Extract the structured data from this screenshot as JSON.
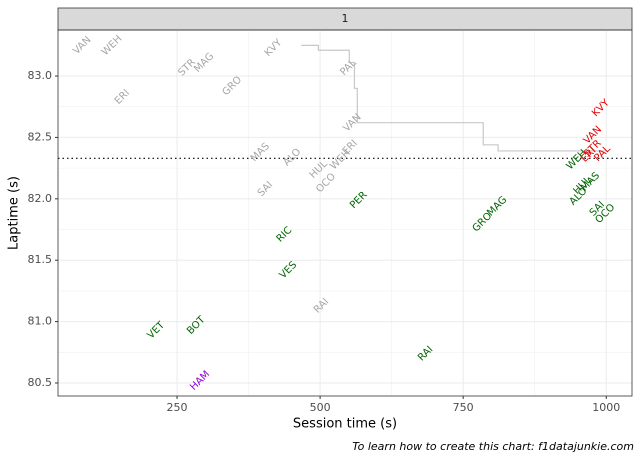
{
  "chart_data": {
    "type": "text-scatter",
    "strip": "1",
    "x_label": "Session time (s)",
    "y_label": "Laptime (s)",
    "caption": "To learn how to create this chart: f1datajunkie.com",
    "xlim": [
      42,
      1045
    ],
    "ylim": [
      80.394,
      83.375
    ],
    "xticks": [
      250,
      500,
      750,
      1000
    ],
    "yticks": [
      {
        "value": 80.5,
        "label": "80.5"
      },
      {
        "value": 81,
        "label": "81.0"
      },
      {
        "value": 81.5,
        "label": "81.5"
      },
      {
        "value": 82,
        "label": "82.0"
      },
      {
        "value": 82.5,
        "label": "82.5"
      },
      {
        "value": 83,
        "label": "83.0"
      }
    ],
    "grid": true,
    "hline": 82.33,
    "step_line": {
      "color": "#c8c8c8",
      "x": [
        467,
        497,
        551,
        560,
        565,
        785,
        811,
        1000
      ],
      "y": [
        83.25,
        83.21,
        83.11,
        82.9,
        82.62,
        82.44,
        82.39,
        82.39
      ]
    },
    "points": [
      {
        "text": "VAN",
        "x": 84,
        "y": 83.25,
        "color": "#a6a6a6"
      },
      {
        "text": "WEH",
        "x": 136,
        "y": 83.25,
        "color": "#a6a6a6"
      },
      {
        "text": "ERI",
        "x": 154,
        "y": 82.83,
        "color": "#a6a6a6"
      },
      {
        "text": "STR",
        "x": 267,
        "y": 83.07,
        "color": "#a6a6a6"
      },
      {
        "text": "MAG",
        "x": 297,
        "y": 83.11,
        "color": "#a6a6a6"
      },
      {
        "text": "GRO",
        "x": 346,
        "y": 82.92,
        "color": "#a6a6a6"
      },
      {
        "text": "KVY",
        "x": 418,
        "y": 83.23,
        "color": "#a6a6a6"
      },
      {
        "text": "MAS",
        "x": 395,
        "y": 82.38,
        "color": "#a6a6a6"
      },
      {
        "text": "ALO",
        "x": 451,
        "y": 82.34,
        "color": "#a6a6a6"
      },
      {
        "text": "SAI",
        "x": 404,
        "y": 82.08,
        "color": "#a6a6a6"
      },
      {
        "text": "HUL",
        "x": 497,
        "y": 82.24,
        "color": "#a6a6a6"
      },
      {
        "text": "OCO",
        "x": 510,
        "y": 82.13,
        "color": "#a6a6a6"
      },
      {
        "text": "WEH",
        "x": 535,
        "y": 82.32,
        "color": "#a6a6a6"
      },
      {
        "text": "ERI",
        "x": 552,
        "y": 82.42,
        "color": "#a6a6a6"
      },
      {
        "text": "VAN",
        "x": 556,
        "y": 82.62,
        "color": "#a6a6a6"
      },
      {
        "text": "PAL",
        "x": 549,
        "y": 83.07,
        "color": "#a6a6a6"
      },
      {
        "text": "RAI",
        "x": 502,
        "y": 81.13,
        "color": "#a6a6a6"
      },
      {
        "text": "PER",
        "x": 567,
        "y": 81.99,
        "color": "#006400"
      },
      {
        "text": "RIC",
        "x": 437,
        "y": 81.71,
        "color": "#006400"
      },
      {
        "text": "VES",
        "x": 444,
        "y": 81.42,
        "color": "#006400"
      },
      {
        "text": "VET",
        "x": 213,
        "y": 80.93,
        "color": "#006400"
      },
      {
        "text": "BOT",
        "x": 283,
        "y": 80.97,
        "color": "#006400"
      },
      {
        "text": "RAI",
        "x": 684,
        "y": 80.74,
        "color": "#006400"
      },
      {
        "text": "GRO",
        "x": 783,
        "y": 81.81,
        "color": "#006400"
      },
      {
        "text": "MAG",
        "x": 809,
        "y": 81.94,
        "color": "#006400"
      },
      {
        "text": "WEH",
        "x": 948,
        "y": 82.32,
        "color": "#006400"
      },
      {
        "text": "HUL",
        "x": 958,
        "y": 82.11,
        "color": "#006400"
      },
      {
        "text": "MAS",
        "x": 972,
        "y": 82.14,
        "color": "#006400"
      },
      {
        "text": "ALO",
        "x": 951,
        "y": 82.02,
        "color": "#006400"
      },
      {
        "text": "SAI",
        "x": 984,
        "y": 81.92,
        "color": "#006400"
      },
      {
        "text": "OCO",
        "x": 998,
        "y": 81.88,
        "color": "#006400"
      },
      {
        "text": "KVY",
        "x": 990,
        "y": 82.74,
        "color": "#e00000"
      },
      {
        "text": "VAN",
        "x": 976,
        "y": 82.52,
        "color": "#e00000"
      },
      {
        "text": "STR",
        "x": 976,
        "y": 82.41,
        "color": "#e00000"
      },
      {
        "text": "ERI",
        "x": 969,
        "y": 82.36,
        "color": "#e00000"
      },
      {
        "text": "PAL",
        "x": 993,
        "y": 82.37,
        "color": "#e00000"
      },
      {
        "text": "HAM",
        "x": 290,
        "y": 80.52,
        "color": "#9400d3"
      }
    ]
  }
}
